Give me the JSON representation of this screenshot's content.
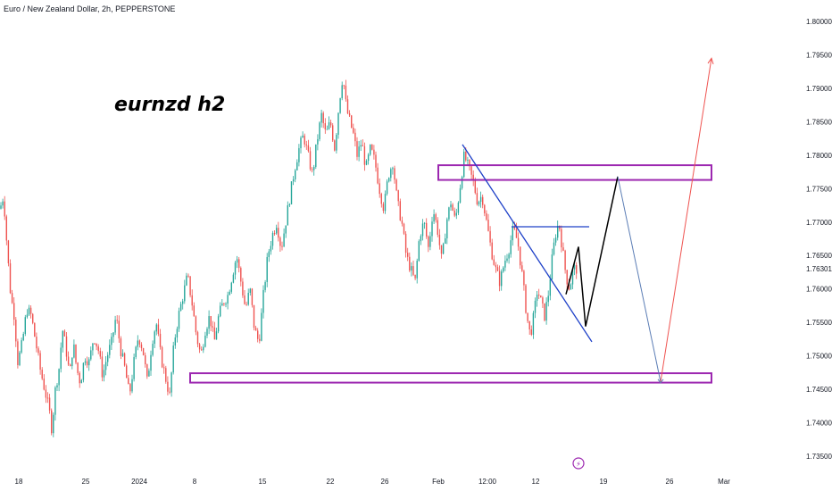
{
  "header": {
    "title": "Euro / New Zealand Dollar, 2h, PEPPERSTONE"
  },
  "annotation": {
    "text": "eurnzd h2"
  },
  "colors": {
    "up": "#26a69a",
    "down": "#ef5350",
    "zone": "#9c27b0",
    "trendline": "#1e40c8",
    "path_black": "#000000",
    "path_projection": "#5b7db5",
    "target_arrow": "#ef5350",
    "event_icon": "#9c27b0"
  },
  "price_axis": {
    "labels": [
      "1.80000",
      "1.79500",
      "1.79000",
      "1.78500",
      "1.78000",
      "1.77500",
      "1.77000",
      "1.76500",
      "1.76301",
      "1.76000",
      "1.75500",
      "1.75000",
      "1.74500",
      "1.74000",
      "1.73500"
    ]
  },
  "time_axis": {
    "labels": [
      "18",
      "25",
      "2024",
      "8",
      "15",
      "22",
      "26",
      "Feb",
      "12:00",
      "12",
      "19",
      "26",
      "Mar"
    ]
  },
  "event_icon": {
    "name": "lightning-icon",
    "glyph": "⚡"
  },
  "chart_data": {
    "type": "candlestick",
    "title": "Euro / New Zealand Dollar, 2h, PEPPERSTONE",
    "ylim": [
      1.7325,
      1.8025
    ],
    "price_ticks": [
      1.8,
      1.795,
      1.79,
      1.785,
      1.78,
      1.775,
      1.77,
      1.765,
      1.76301,
      1.76,
      1.755,
      1.75,
      1.745,
      1.74,
      1.735
    ],
    "current_price": 1.76301,
    "price_path": [
      [
        0,
        1.772
      ],
      [
        4,
        1.774
      ],
      [
        8,
        1.766
      ],
      [
        12,
        1.759
      ],
      [
        16,
        1.756
      ],
      [
        20,
        1.749
      ],
      [
        25,
        1.752
      ],
      [
        30,
        1.757
      ],
      [
        35,
        1.756
      ],
      [
        40,
        1.752
      ],
      [
        45,
        1.748
      ],
      [
        50,
        1.745
      ],
      [
        55,
        1.742
      ],
      [
        58,
        1.739
      ],
      [
        62,
        1.745
      ],
      [
        66,
        1.748
      ],
      [
        70,
        1.754
      ],
      [
        74,
        1.751
      ],
      [
        78,
        1.747
      ],
      [
        82,
        1.752
      ],
      [
        86,
        1.748
      ],
      [
        90,
        1.746
      ],
      [
        95,
        1.75
      ],
      [
        100,
        1.749
      ],
      [
        105,
        1.753
      ],
      [
        110,
        1.751
      ],
      [
        115,
        1.747
      ],
      [
        120,
        1.75
      ],
      [
        125,
        1.752
      ],
      [
        130,
        1.756
      ],
      [
        135,
        1.751
      ],
      [
        140,
        1.748
      ],
      [
        145,
        1.744
      ],
      [
        150,
        1.749
      ],
      [
        155,
        1.753
      ],
      [
        160,
        1.751
      ],
      [
        165,
        1.746
      ],
      [
        170,
        1.752
      ],
      [
        175,
        1.755
      ],
      [
        180,
        1.75
      ],
      [
        185,
        1.747
      ],
      [
        190,
        1.744
      ],
      [
        195,
        1.752
      ],
      [
        200,
        1.756
      ],
      [
        205,
        1.759
      ],
      [
        210,
        1.762
      ],
      [
        215,
        1.758
      ],
      [
        220,
        1.753
      ],
      [
        225,
        1.75
      ],
      [
        230,
        1.754
      ],
      [
        235,
        1.756
      ],
      [
        240,
        1.752
      ],
      [
        245,
        1.756
      ],
      [
        250,
        1.758
      ],
      [
        255,
        1.759
      ],
      [
        260,
        1.762
      ],
      [
        265,
        1.765
      ],
      [
        270,
        1.761
      ],
      [
        275,
        1.757
      ],
      [
        280,
        1.76
      ],
      [
        285,
        1.754
      ],
      [
        290,
        1.752
      ],
      [
        295,
        1.759
      ],
      [
        300,
        1.765
      ],
      [
        305,
        1.768
      ],
      [
        310,
        1.77
      ],
      [
        315,
        1.766
      ],
      [
        320,
        1.77
      ],
      [
        325,
        1.774
      ],
      [
        330,
        1.778
      ],
      [
        335,
        1.781
      ],
      [
        340,
        1.783
      ],
      [
        345,
        1.78
      ],
      [
        350,
        1.777
      ],
      [
        355,
        1.782
      ],
      [
        360,
        1.786
      ],
      [
        365,
        1.783
      ],
      [
        370,
        1.785
      ],
      [
        375,
        1.781
      ],
      [
        380,
        1.788
      ],
      [
        384,
        1.792
      ],
      [
        388,
        1.787
      ],
      [
        392,
        1.785
      ],
      [
        396,
        1.783
      ],
      [
        400,
        1.78
      ],
      [
        405,
        1.782
      ],
      [
        410,
        1.778
      ],
      [
        415,
        1.781
      ],
      [
        420,
        1.779
      ],
      [
        425,
        1.775
      ],
      [
        430,
        1.772
      ],
      [
        435,
        1.777
      ],
      [
        440,
        1.779
      ],
      [
        445,
        1.773
      ],
      [
        450,
        1.77
      ],
      [
        455,
        1.765
      ],
      [
        460,
        1.763
      ],
      [
        465,
        1.761
      ],
      [
        470,
        1.768
      ],
      [
        475,
        1.77
      ],
      [
        480,
        1.766
      ],
      [
        485,
        1.772
      ],
      [
        490,
        1.769
      ],
      [
        495,
        1.764
      ],
      [
        500,
        1.77
      ],
      [
        505,
        1.773
      ],
      [
        510,
        1.77
      ],
      [
        515,
        1.775
      ],
      [
        520,
        1.78
      ],
      [
        525,
        1.778
      ],
      [
        530,
        1.776
      ],
      [
        535,
        1.773
      ],
      [
        540,
        1.774
      ],
      [
        545,
        1.77
      ],
      [
        550,
        1.766
      ],
      [
        555,
        1.763
      ],
      [
        560,
        1.761
      ],
      [
        565,
        1.764
      ],
      [
        570,
        1.766
      ],
      [
        575,
        1.769
      ],
      [
        580,
        1.767
      ],
      [
        585,
        1.762
      ],
      [
        590,
        1.756
      ],
      [
        594,
        1.753
      ],
      [
        598,
        1.756
      ],
      [
        602,
        1.76
      ],
      [
        606,
        1.758
      ],
      [
        610,
        1.756
      ],
      [
        614,
        1.759
      ],
      [
        618,
        1.764
      ],
      [
        622,
        1.768
      ],
      [
        626,
        1.77
      ],
      [
        630,
        1.766
      ],
      [
        634,
        1.762
      ],
      [
        638,
        1.76
      ],
      [
        642,
        1.763
      ],
      [
        646,
        1.763
      ]
    ],
    "zones": [
      {
        "name": "resistance-zone",
        "x1": 491,
        "x2": 797,
        "y_top": 1.7785,
        "y_bottom": 1.7763
      },
      {
        "name": "support-zone",
        "x1": 213,
        "x2": 797,
        "y_top": 1.7474,
        "y_bottom": 1.746
      }
    ],
    "trendlines": [
      {
        "name": "descending-trendline",
        "p1": [
          518,
          1.7816
        ],
        "p2": [
          663,
          1.7521
        ]
      },
      {
        "name": "horizontal-level",
        "p1": [
          573,
          1.7693
        ],
        "p2": [
          660,
          1.7693
        ]
      }
    ],
    "black_path": [
      [
        634,
        1.7592
      ],
      [
        648,
        1.7663
      ],
      [
        656,
        1.7544
      ],
      [
        692,
        1.7768
      ]
    ],
    "projection_path": [
      [
        692,
        1.7768
      ],
      [
        740,
        1.7461
      ]
    ],
    "target_arrow": [
      [
        740,
        1.7461
      ],
      [
        797,
        1.7945
      ]
    ]
  }
}
